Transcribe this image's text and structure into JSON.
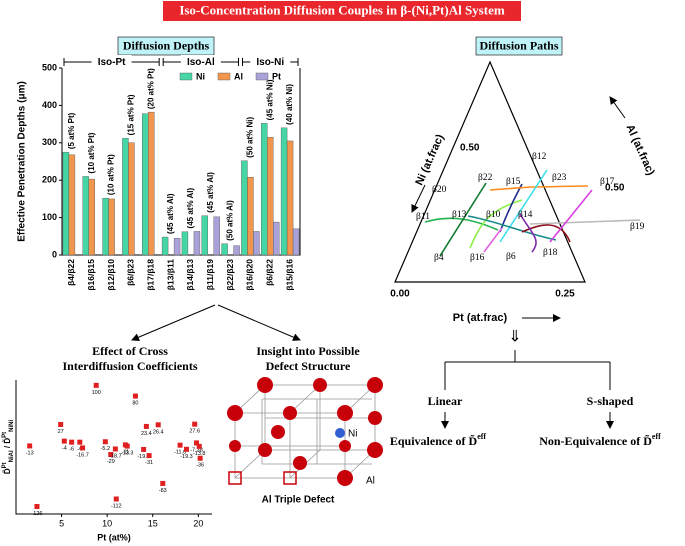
{
  "title": "Iso-Concentration Diffusion Couples in β-(Ni,Pt)Al System",
  "panels": {
    "depths": "Diffusion Depths",
    "paths": "Diffusion Paths",
    "cross": [
      "Effect of Cross",
      "Interdiffusion Coefficients"
    ],
    "defect": [
      "Insight into Possible",
      "Defect Structure"
    ]
  },
  "chart_data": [
    {
      "type": "bar",
      "groups": [
        "Iso-Pt",
        "Iso-Al",
        "Iso-Ni"
      ],
      "y_label": "Effective Penetration Depths (μm)",
      "categories": [
        "β4/β22",
        "β16/β15",
        "β12/β10",
        "β6/β23",
        "β17/β18",
        "β13/β11",
        "β14/β13",
        "β11/β19",
        "β22/β23",
        "β16/β20",
        "β6/β22",
        "β15/β16"
      ],
      "annotations": [
        "(5 at% Pt)",
        "(10 at% Pt)",
        "(10 at% Pt)",
        "(15 at% Pt)",
        "(20 at% Pt)",
        "(45 at% Al)",
        "(45 at% Al)",
        "(45 at% Al)",
        "(50 at% Al)",
        "(50 at% Ni)",
        "(45 at% Ni)",
        "(40 at% Ni)"
      ],
      "series": [
        {
          "name": "Ni",
          "color": "#46d6a6",
          "values": [
            275,
            210,
            152,
            312,
            378,
            48,
            62,
            105,
            30,
            252,
            352,
            340
          ]
        },
        {
          "name": "Al",
          "color": "#f0964e",
          "values": [
            268,
            203,
            150,
            300,
            382,
            null,
            null,
            null,
            null,
            208,
            315,
            305
          ]
        },
        {
          "name": "Pt",
          "color": "#a8a2d8",
          "values": [
            null,
            null,
            null,
            null,
            null,
            45,
            63,
            102,
            25,
            63,
            88,
            70
          ]
        }
      ],
      "ylim": [
        0,
        500
      ],
      "yticks": [
        0,
        100,
        200,
        300,
        400,
        500
      ],
      "legend": "top-right"
    },
    {
      "type": "scatter",
      "x_label": "Pt (at%)",
      "y_label": [
        "D̃",
        "Pt",
        "NiAl",
        " / D̃",
        "Pt",
        "NiNi"
      ],
      "color": "#e02020",
      "x": [
        1.5,
        2.3,
        4.9,
        5.3,
        6.1,
        7.0,
        7.3,
        8.8,
        9.8,
        10.4,
        10.9,
        11.0,
        12.0,
        12.2,
        13.1,
        14.0,
        14.3,
        14.6,
        15.6,
        16.1,
        18.0,
        18.7,
        19.6,
        19.8,
        20.1,
        20.2
      ],
      "values": [
        -13,
        -126,
        27,
        -4,
        -6,
        -6,
        -16.7,
        100,
        -5.2,
        -29,
        -18.7,
        -112,
        -11,
        -13.3,
        80,
        -19.6,
        23.4,
        -31,
        26.4,
        -83,
        -11.6,
        -19.3,
        27.6,
        -7.38,
        -13.8,
        -36
      ],
      "xlim": [
        0,
        21.5
      ],
      "ylim": [
        -140,
        110
      ],
      "xticks": [
        5,
        10,
        15,
        20
      ]
    }
  ],
  "ternary": {
    "axes": [
      "Ni (at.frac)",
      "Al (at.frac)",
      "Pt (at.frac)"
    ],
    "ticks": [
      "0.50",
      "0.50",
      "0.00",
      "0.25"
    ],
    "points": [
      "β20",
      "β22",
      "β12",
      "β15",
      "β23",
      "β17",
      "β11",
      "β13",
      "β10",
      "β14",
      "β19",
      "β4",
      "β16",
      "β6",
      "β18"
    ]
  },
  "cube": {
    "ni": "Ni",
    "al": "Al",
    "caption": "Al Triple Defect"
  },
  "flow": {
    "arrow": "⇓",
    "left": "Linear",
    "right": "S-shaped",
    "left_result": "Equivalence of D̃",
    "right_result": "Non-Equivalence of D̃",
    "sup": "eff"
  }
}
